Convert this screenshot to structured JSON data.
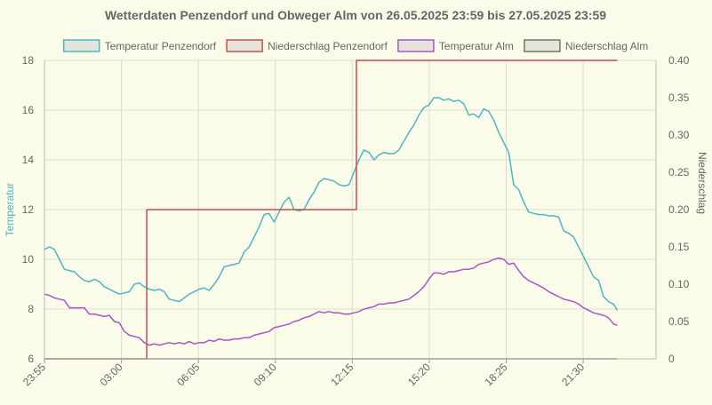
{
  "chart_data": {
    "type": "line",
    "title": "Wetterdaten Penzendorf und Obweger Alm von 26.05.2025 23:59 bis 27.05.2025 23:59",
    "x_tick_labels": [
      "23:55",
      "03:00",
      "06:05",
      "09:10",
      "12:15",
      "15:20",
      "18:25",
      "21:30"
    ],
    "x_tick_positions_hours": [
      0,
      3.083,
      6.167,
      9.25,
      12.333,
      15.417,
      18.5,
      21.583
    ],
    "x_range_hours": [
      0,
      24.5
    ],
    "y_left": {
      "label": "Temperatur",
      "range": [
        6,
        18
      ],
      "ticks": [
        "6",
        "8",
        "10",
        "12",
        "14",
        "16",
        "18"
      ]
    },
    "y_right": {
      "label": "Niederschlag",
      "range": [
        0,
        0.4
      ],
      "ticks": [
        "0",
        "0.05",
        "0.10",
        "0.15",
        "0.20",
        "0.25",
        "0.30",
        "0.35",
        "0.40"
      ]
    },
    "grid": true,
    "legend_position": "top",
    "series": [
      {
        "name": "Temperatur Penzendorf",
        "axis": "left",
        "color": "#4ab8c3",
        "points": [
          [
            0,
            10.4
          ],
          [
            0.2,
            10.5
          ],
          [
            0.4,
            10.4
          ],
          [
            0.6,
            10.0
          ],
          [
            0.8,
            9.6
          ],
          [
            1.0,
            9.55
          ],
          [
            1.2,
            9.5
          ],
          [
            1.4,
            9.3
          ],
          [
            1.6,
            9.15
          ],
          [
            1.8,
            9.1
          ],
          [
            2.0,
            9.2
          ],
          [
            2.2,
            9.1
          ],
          [
            2.4,
            8.9
          ],
          [
            2.6,
            8.8
          ],
          [
            2.8,
            8.7
          ],
          [
            3.0,
            8.6
          ],
          [
            3.2,
            8.65
          ],
          [
            3.4,
            8.7
          ],
          [
            3.6,
            9.0
          ],
          [
            3.8,
            9.05
          ],
          [
            4.0,
            8.9
          ],
          [
            4.2,
            8.8
          ],
          [
            4.4,
            8.75
          ],
          [
            4.6,
            8.8
          ],
          [
            4.8,
            8.7
          ],
          [
            5.0,
            8.4
          ],
          [
            5.2,
            8.35
          ],
          [
            5.4,
            8.3
          ],
          [
            5.6,
            8.45
          ],
          [
            5.8,
            8.6
          ],
          [
            6.0,
            8.7
          ],
          [
            6.2,
            8.8
          ],
          [
            6.4,
            8.85
          ],
          [
            6.6,
            8.75
          ],
          [
            6.8,
            9.0
          ],
          [
            7.0,
            9.3
          ],
          [
            7.2,
            9.7
          ],
          [
            7.4,
            9.75
          ],
          [
            7.6,
            9.8
          ],
          [
            7.8,
            9.85
          ],
          [
            8.0,
            10.3
          ],
          [
            8.2,
            10.5
          ],
          [
            8.4,
            10.9
          ],
          [
            8.6,
            11.3
          ],
          [
            8.8,
            11.8
          ],
          [
            9.0,
            11.85
          ],
          [
            9.2,
            11.5
          ],
          [
            9.4,
            11.9
          ],
          [
            9.6,
            12.3
          ],
          [
            9.8,
            12.5
          ],
          [
            10.0,
            12.0
          ],
          [
            10.2,
            11.95
          ],
          [
            10.4,
            12.0
          ],
          [
            10.6,
            12.4
          ],
          [
            10.8,
            12.7
          ],
          [
            11.0,
            13.1
          ],
          [
            11.2,
            13.25
          ],
          [
            11.4,
            13.2
          ],
          [
            11.6,
            13.15
          ],
          [
            11.8,
            13.0
          ],
          [
            12.0,
            12.95
          ],
          [
            12.2,
            13.0
          ],
          [
            12.4,
            13.5
          ],
          [
            12.6,
            14.0
          ],
          [
            12.8,
            14.4
          ],
          [
            13.0,
            14.3
          ],
          [
            13.2,
            14.0
          ],
          [
            13.4,
            14.2
          ],
          [
            13.6,
            14.3
          ],
          [
            13.8,
            14.25
          ],
          [
            14.0,
            14.25
          ],
          [
            14.2,
            14.4
          ],
          [
            14.4,
            14.75
          ],
          [
            14.6,
            15.1
          ],
          [
            14.8,
            15.4
          ],
          [
            15.0,
            15.8
          ],
          [
            15.2,
            16.1
          ],
          [
            15.4,
            16.2
          ],
          [
            15.6,
            16.5
          ],
          [
            15.8,
            16.5
          ],
          [
            16.0,
            16.4
          ],
          [
            16.2,
            16.45
          ],
          [
            16.4,
            16.35
          ],
          [
            16.6,
            16.4
          ],
          [
            16.8,
            16.25
          ],
          [
            17.0,
            15.8
          ],
          [
            17.2,
            15.85
          ],
          [
            17.4,
            15.7
          ],
          [
            17.6,
            16.05
          ],
          [
            17.8,
            15.95
          ],
          [
            18.0,
            15.6
          ],
          [
            18.2,
            15.1
          ],
          [
            18.4,
            14.7
          ],
          [
            18.6,
            14.3
          ],
          [
            18.8,
            13.0
          ],
          [
            19.0,
            12.8
          ],
          [
            19.2,
            12.3
          ],
          [
            19.4,
            11.9
          ],
          [
            19.6,
            11.85
          ],
          [
            19.8,
            11.8
          ],
          [
            20.0,
            11.8
          ],
          [
            20.2,
            11.75
          ],
          [
            20.4,
            11.75
          ],
          [
            20.6,
            11.7
          ],
          [
            20.8,
            11.15
          ],
          [
            21.0,
            11.05
          ],
          [
            21.2,
            10.9
          ],
          [
            21.4,
            10.5
          ],
          [
            21.6,
            10.1
          ],
          [
            21.8,
            9.7
          ],
          [
            22.0,
            9.3
          ],
          [
            22.2,
            9.15
          ],
          [
            22.4,
            8.5
          ],
          [
            22.6,
            8.3
          ],
          [
            22.8,
            8.2
          ],
          [
            22.95,
            7.95
          ]
        ]
      },
      {
        "name": "Niederschlag Penzendorf",
        "axis": "right",
        "color": "#c0504d",
        "step": true,
        "points": [
          [
            0,
            0
          ],
          [
            4.1,
            0
          ],
          [
            4.1,
            0.2
          ],
          [
            12.5,
            0.2
          ],
          [
            12.5,
            0.4
          ],
          [
            22.95,
            0.4
          ]
        ]
      },
      {
        "name": "Temperatur Alm",
        "axis": "left",
        "color": "#a855c8",
        "points": [
          [
            0,
            8.6
          ],
          [
            0.2,
            8.55
          ],
          [
            0.4,
            8.45
          ],
          [
            0.6,
            8.4
          ],
          [
            0.8,
            8.35
          ],
          [
            1.0,
            8.05
          ],
          [
            1.2,
            8.05
          ],
          [
            1.4,
            8.05
          ],
          [
            1.6,
            8.05
          ],
          [
            1.8,
            7.8
          ],
          [
            2.0,
            7.8
          ],
          [
            2.2,
            7.75
          ],
          [
            2.4,
            7.7
          ],
          [
            2.6,
            7.75
          ],
          [
            2.8,
            7.5
          ],
          [
            3.0,
            7.45
          ],
          [
            3.2,
            7.1
          ],
          [
            3.4,
            6.95
          ],
          [
            3.6,
            6.9
          ],
          [
            3.8,
            6.85
          ],
          [
            4.0,
            6.65
          ],
          [
            4.2,
            6.55
          ],
          [
            4.4,
            6.6
          ],
          [
            4.6,
            6.55
          ],
          [
            4.8,
            6.6
          ],
          [
            5.0,
            6.65
          ],
          [
            5.2,
            6.6
          ],
          [
            5.4,
            6.65
          ],
          [
            5.6,
            6.6
          ],
          [
            5.8,
            6.7
          ],
          [
            6.0,
            6.6
          ],
          [
            6.2,
            6.65
          ],
          [
            6.4,
            6.65
          ],
          [
            6.6,
            6.75
          ],
          [
            6.8,
            6.7
          ],
          [
            7.0,
            6.8
          ],
          [
            7.2,
            6.75
          ],
          [
            7.4,
            6.75
          ],
          [
            7.6,
            6.8
          ],
          [
            7.8,
            6.8
          ],
          [
            8.0,
            6.85
          ],
          [
            8.2,
            6.85
          ],
          [
            8.4,
            6.95
          ],
          [
            8.6,
            7.0
          ],
          [
            8.8,
            7.05
          ],
          [
            9.0,
            7.1
          ],
          [
            9.2,
            7.25
          ],
          [
            9.4,
            7.3
          ],
          [
            9.6,
            7.35
          ],
          [
            9.8,
            7.4
          ],
          [
            10.0,
            7.5
          ],
          [
            10.2,
            7.55
          ],
          [
            10.4,
            7.65
          ],
          [
            10.6,
            7.7
          ],
          [
            10.8,
            7.8
          ],
          [
            11.0,
            7.9
          ],
          [
            11.2,
            7.85
          ],
          [
            11.4,
            7.9
          ],
          [
            11.6,
            7.85
          ],
          [
            11.8,
            7.85
          ],
          [
            12.0,
            7.8
          ],
          [
            12.2,
            7.8
          ],
          [
            12.4,
            7.85
          ],
          [
            12.6,
            7.9
          ],
          [
            12.8,
            8.0
          ],
          [
            13.0,
            8.05
          ],
          [
            13.2,
            8.1
          ],
          [
            13.4,
            8.2
          ],
          [
            13.6,
            8.2
          ],
          [
            13.8,
            8.25
          ],
          [
            14.0,
            8.25
          ],
          [
            14.2,
            8.3
          ],
          [
            14.4,
            8.35
          ],
          [
            14.6,
            8.4
          ],
          [
            14.8,
            8.55
          ],
          [
            15.0,
            8.7
          ],
          [
            15.2,
            8.9
          ],
          [
            15.4,
            9.2
          ],
          [
            15.6,
            9.45
          ],
          [
            15.8,
            9.45
          ],
          [
            16.0,
            9.4
          ],
          [
            16.2,
            9.5
          ],
          [
            16.4,
            9.5
          ],
          [
            16.6,
            9.55
          ],
          [
            16.8,
            9.6
          ],
          [
            17.0,
            9.6
          ],
          [
            17.2,
            9.65
          ],
          [
            17.4,
            9.8
          ],
          [
            17.6,
            9.85
          ],
          [
            17.8,
            9.9
          ],
          [
            18.0,
            10.0
          ],
          [
            18.2,
            10.05
          ],
          [
            18.4,
            10.0
          ],
          [
            18.6,
            9.8
          ],
          [
            18.8,
            9.85
          ],
          [
            19.0,
            9.55
          ],
          [
            19.2,
            9.3
          ],
          [
            19.4,
            9.15
          ],
          [
            19.6,
            9.05
          ],
          [
            19.8,
            8.95
          ],
          [
            20.0,
            8.85
          ],
          [
            20.2,
            8.7
          ],
          [
            20.4,
            8.6
          ],
          [
            20.6,
            8.5
          ],
          [
            20.8,
            8.4
          ],
          [
            21.0,
            8.35
          ],
          [
            21.2,
            8.3
          ],
          [
            21.4,
            8.2
          ],
          [
            21.6,
            8.05
          ],
          [
            21.8,
            7.95
          ],
          [
            22.0,
            7.85
          ],
          [
            22.2,
            7.8
          ],
          [
            22.4,
            7.75
          ],
          [
            22.6,
            7.65
          ],
          [
            22.8,
            7.4
          ],
          [
            22.95,
            7.35
          ]
        ]
      },
      {
        "name": "Niederschlag Alm",
        "axis": "right",
        "color": "#6b7b6b",
        "points": [
          [
            0,
            0
          ],
          [
            22.95,
            0
          ]
        ]
      }
    ]
  },
  "legend_fill_color": "#e4e4da",
  "axis_text_color": "#666666"
}
